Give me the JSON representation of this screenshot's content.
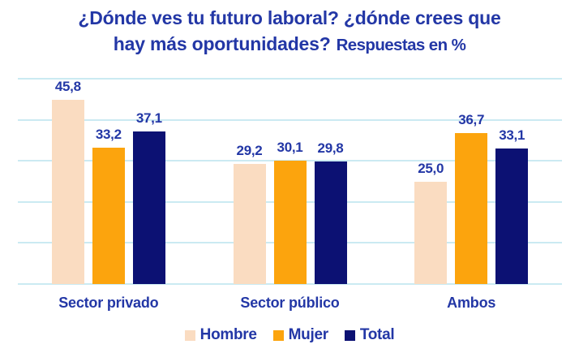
{
  "title": {
    "lines": [
      "¿Dónde ves tu futuro laboral? ¿dónde crees que",
      "hay más oportunidades?"
    ],
    "suffix": "Respuestas en %"
  },
  "colors": {
    "text_blue": "#2337A6",
    "gridline": "#CBEAF2",
    "hombre": "#FADCC1",
    "mujer": "#FCA40D",
    "total": "#0C1173"
  },
  "chart_data": {
    "type": "bar",
    "title": "¿Dónde ves tu futuro laboral? ¿dónde crees que hay más oportunidades? Respuestas en %",
    "categories": [
      "Sector privado",
      "Sector público",
      "Ambos"
    ],
    "series": [
      {
        "name": "Hombre",
        "color": "#FADCC1",
        "values": [
          45.8,
          29.2,
          25.0
        ],
        "value_labels": [
          "45,8",
          "29,2",
          "25,0"
        ]
      },
      {
        "name": "Mujer",
        "color": "#FCA40D",
        "values": [
          33.2,
          30.1,
          36.7
        ],
        "value_labels": [
          "33,2",
          "30,1",
          "36,7"
        ]
      },
      {
        "name": "Total",
        "color": "#0C1173",
        "values": [
          37.1,
          29.8,
          33.1
        ],
        "value_labels": [
          "37,1",
          "29,8",
          "33,1"
        ]
      }
    ],
    "ylim": [
      0,
      50
    ],
    "gridline_step": 10,
    "grid": true,
    "legend_position": "bottom",
    "xlabel": "",
    "ylabel": ""
  }
}
